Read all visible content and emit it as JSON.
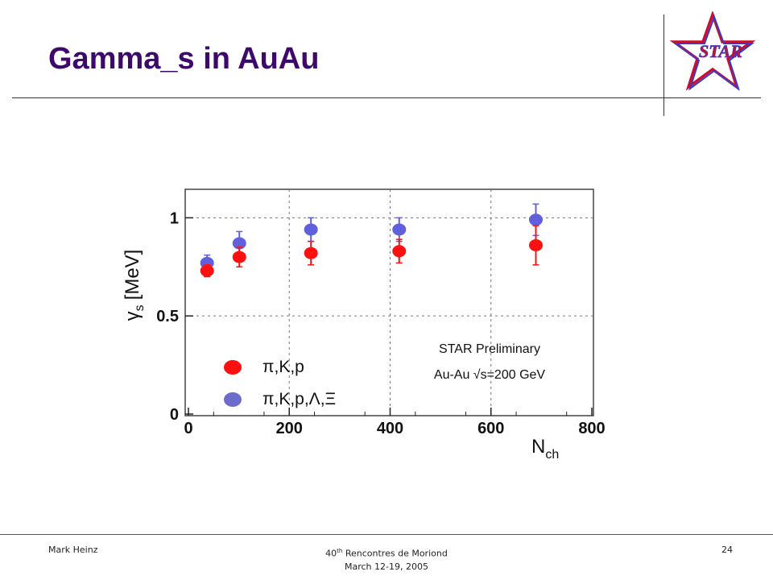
{
  "slide": {
    "title": "Gamma_s in AuAu",
    "logo_text": "STAR"
  },
  "footer": {
    "author": "Mark Heinz",
    "conf_num": "40",
    "conf_sup": "th",
    "conf_rest": " Rencontres de Moriond",
    "dates": "March 12-19, 2005",
    "page": "24"
  },
  "chart_data": {
    "type": "scatter",
    "xlabel": "N",
    "xlabel_sub": "ch",
    "ylabel": "γ",
    "ylabel_sub": "s",
    "ylabel_unit": "[MeV]",
    "xlim": [
      0,
      800
    ],
    "ylim": [
      0,
      1.1
    ],
    "xticks": [
      "0",
      "200",
      "400",
      "600",
      "800"
    ],
    "xtick_values": [
      0,
      200,
      400,
      600,
      800
    ],
    "yticks": [
      "0",
      "0.5",
      "1"
    ],
    "ytick_values": [
      0,
      0.5,
      1
    ],
    "grid": "dashed",
    "legend_position": "bottom-left",
    "annotation_line1": "STAR Preliminary",
    "annotation_line2": "Au-Au √s=200 GeV",
    "series": [
      {
        "name": "π,K,p",
        "color": "#ff1010",
        "x": [
          37,
          101,
          243,
          418,
          689
        ],
        "y": [
          0.73,
          0.8,
          0.82,
          0.83,
          0.86
        ],
        "err": [
          0.03,
          0.05,
          0.06,
          0.06,
          0.1
        ]
      },
      {
        "name": "π,K,p,Λ,Ξ",
        "color": "#6060dd",
        "x": [
          37,
          101,
          243,
          418,
          689
        ],
        "y": [
          0.77,
          0.87,
          0.94,
          0.94,
          0.99
        ],
        "err": [
          0.04,
          0.06,
          0.06,
          0.06,
          0.08
        ]
      }
    ]
  }
}
